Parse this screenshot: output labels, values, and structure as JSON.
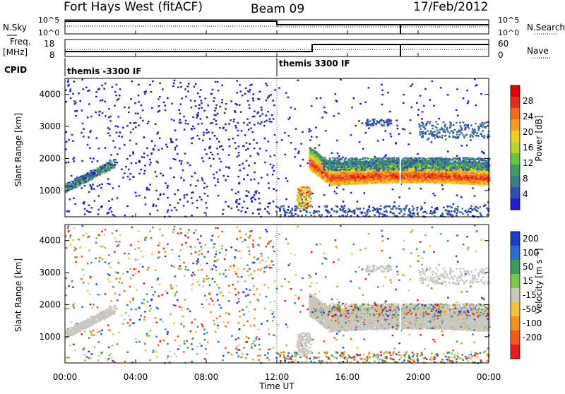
{
  "header": {
    "station": "Fort Hays West (fitACF)",
    "beam": "Beam 09",
    "date": "17/Feb/2012"
  },
  "panels": {
    "nsky": {
      "label_top": "N.Sky",
      "ticks": [
        "10^5",
        "10^0"
      ],
      "right_ticks": [
        "10^5",
        "10^0"
      ],
      "right_label": "N.Search"
    },
    "freq": {
      "label_line1": "Freq.",
      "label_line2": "[MHz]",
      "ticks": [
        "18",
        "8"
      ],
      "right_ticks": [
        "60",
        "0"
      ],
      "right_label": "Nave"
    },
    "cpid": {
      "label": "CPID",
      "segments": [
        "themis -3300 IF",
        "themis 3300 IF"
      ]
    }
  },
  "chart_data": [
    {
      "type": "heatmap",
      "name": "power",
      "ylabel": "Slant Range [km]",
      "xlabel": "Time UT",
      "ylim": [
        180,
        4500
      ],
      "yticks": [
        "1000",
        "2000",
        "3000",
        "4000"
      ],
      "xticks": [
        "00:00",
        "04:00",
        "08:00",
        "12:00",
        "16:00",
        "20:00",
        "00:00"
      ],
      "colorbar": {
        "label": "Power [dB]",
        "ticks": [
          "4",
          "8",
          "12",
          "16",
          "20",
          "24",
          "28"
        ],
        "colors": [
          "#1d1dd8",
          "#2e4fb0",
          "#3e7b8f",
          "#3f9b62",
          "#6cc43c",
          "#b9d62a",
          "#f0d020",
          "#f7a020",
          "#f36a1a",
          "#e82a1a",
          "#e00000"
        ]
      }
    },
    {
      "type": "heatmap",
      "name": "velocity",
      "ylabel": "Slant Range [km]",
      "xlabel": "Time UT",
      "ylim": [
        180,
        4500
      ],
      "yticks": [
        "1000",
        "2000",
        "3000",
        "4000"
      ],
      "xticks": [
        "00:00",
        "04:00",
        "08:00",
        "12:00",
        "16:00",
        "20:00",
        "00:00"
      ],
      "colorbar": {
        "label": "Velocity [m s⁻¹]",
        "ticks": [
          "200",
          "100",
          "50",
          "15",
          "-15",
          "-50",
          "-100",
          "-200"
        ],
        "colors": [
          "#1d3ec8",
          "#2a6fd0",
          "#3a9a5a",
          "#79c84a",
          "#c8c8c0",
          "#f2c23a",
          "#f39020",
          "#f25a1a",
          "#e81e1e"
        ]
      }
    }
  ],
  "axis": {
    "xlabel": "Time UT"
  }
}
